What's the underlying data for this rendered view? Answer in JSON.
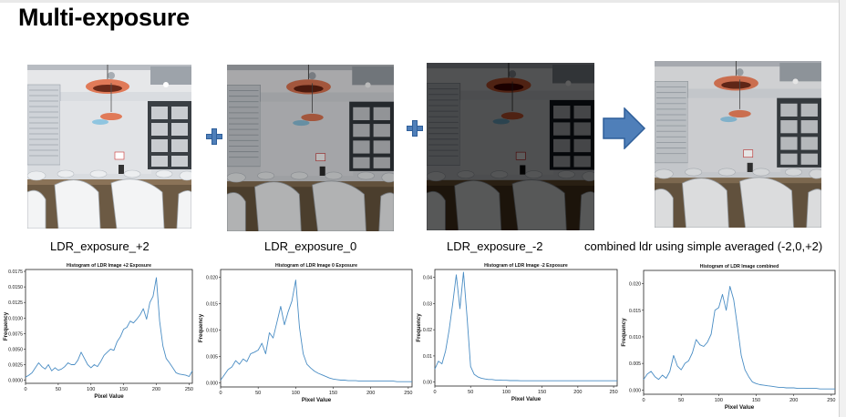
{
  "slide": {
    "title": "Multi-exposure"
  },
  "images": [
    {
      "caption": "LDR_exposure_+2"
    },
    {
      "caption": "LDR_exposure_0"
    },
    {
      "caption": "LDR_exposure_-2"
    },
    {
      "caption": "combined ldr using simple averaged (-2,0,+2)"
    }
  ],
  "colors": {
    "arrow": "#4f7fb9",
    "plus": "#4f7fb9",
    "line": "#4a8dc4"
  },
  "chart_data": [
    {
      "type": "line",
      "title": "Histogram of LDR Image +2 Exposure",
      "xlabel": "Pixel Value",
      "ylabel": "Frequency",
      "xlim": [
        0,
        255
      ],
      "ylim": [
        -0.0005,
        0.0178
      ],
      "xticks": [
        "0",
        "50",
        "100",
        "150",
        "200",
        "250"
      ],
      "yticks": [
        "0.0000",
        "0.0025",
        "0.0050",
        "0.0075",
        "0.0100",
        "0.0125",
        "0.0150",
        "0.0175"
      ],
      "ytick_values": [
        0,
        0.0025,
        0.005,
        0.0075,
        0.01,
        0.0125,
        0.015,
        0.0175
      ],
      "x": [
        0,
        5,
        10,
        15,
        20,
        25,
        30,
        35,
        40,
        45,
        50,
        55,
        60,
        65,
        70,
        75,
        80,
        85,
        90,
        95,
        100,
        105,
        110,
        115,
        120,
        125,
        130,
        135,
        140,
        145,
        150,
        155,
        160,
        165,
        170,
        175,
        180,
        185,
        190,
        195,
        200,
        205,
        210,
        215,
        220,
        225,
        230,
        235,
        240,
        245,
        250,
        255
      ],
      "values": [
        0.0005,
        0.0008,
        0.0012,
        0.002,
        0.0028,
        0.0022,
        0.0018,
        0.0025,
        0.0015,
        0.002,
        0.0016,
        0.0018,
        0.0022,
        0.0028,
        0.0025,
        0.0025,
        0.0032,
        0.0045,
        0.0035,
        0.0025,
        0.002,
        0.0025,
        0.0022,
        0.003,
        0.004,
        0.0045,
        0.005,
        0.0048,
        0.0062,
        0.007,
        0.0082,
        0.0085,
        0.0095,
        0.0092,
        0.0098,
        0.0105,
        0.0115,
        0.0098,
        0.0125,
        0.0135,
        0.0165,
        0.0095,
        0.0055,
        0.0035,
        0.0028,
        0.002,
        0.0012,
        0.001,
        0.0009,
        0.0008,
        0.0006,
        0.0015
      ]
    },
    {
      "type": "line",
      "title": "Histogram of LDR Image 0 Exposure",
      "xlabel": "Pixel Value",
      "ylabel": "Frequency",
      "xlim": [
        0,
        255
      ],
      "ylim": [
        -0.0008,
        0.0215
      ],
      "xticks": [
        "0",
        "50",
        "100",
        "150",
        "200",
        "250"
      ],
      "yticks": [
        "0.000",
        "0.005",
        "0.010",
        "0.015",
        "0.020"
      ],
      "ytick_values": [
        0,
        0.005,
        0.01,
        0.015,
        0.02
      ],
      "x": [
        0,
        5,
        10,
        15,
        20,
        25,
        30,
        35,
        40,
        45,
        50,
        55,
        60,
        65,
        70,
        75,
        80,
        85,
        90,
        95,
        100,
        105,
        110,
        115,
        120,
        125,
        130,
        135,
        140,
        145,
        150,
        155,
        160,
        165,
        170,
        175,
        180,
        185,
        190,
        195,
        200,
        205,
        210,
        215,
        220,
        225,
        230,
        235,
        240,
        245,
        250,
        255
      ],
      "values": [
        0.0005,
        0.0015,
        0.0025,
        0.003,
        0.0042,
        0.0035,
        0.0045,
        0.004,
        0.0055,
        0.0058,
        0.0062,
        0.0075,
        0.0055,
        0.0095,
        0.0085,
        0.0115,
        0.0145,
        0.011,
        0.0135,
        0.0155,
        0.0195,
        0.0105,
        0.0055,
        0.0035,
        0.0028,
        0.0022,
        0.0018,
        0.0015,
        0.0012,
        0.0009,
        0.0007,
        0.0006,
        0.0005,
        0.0005,
        0.0004,
        0.0004,
        0.0004,
        0.0003,
        0.0003,
        0.0003,
        0.0003,
        0.0003,
        0.0003,
        0.0003,
        0.0003,
        0.0003,
        0.0003,
        0.0002,
        0.0002,
        0.0002,
        0.0002,
        0.0002
      ]
    },
    {
      "type": "line",
      "title": "Histogram of LDR Image -2 Exposure",
      "xlabel": "Pixel Value",
      "ylabel": "Frequency",
      "xlim": [
        0,
        255
      ],
      "ylim": [
        -0.0015,
        0.043
      ],
      "xticks": [
        "0",
        "50",
        "100",
        "150",
        "200",
        "250"
      ],
      "yticks": [
        "0.00",
        "0.01",
        "0.02",
        "0.03",
        "0.04"
      ],
      "ytick_values": [
        0,
        0.01,
        0.02,
        0.03,
        0.04
      ],
      "x": [
        0,
        5,
        10,
        15,
        20,
        25,
        30,
        35,
        40,
        45,
        50,
        55,
        60,
        65,
        70,
        75,
        80,
        85,
        90,
        95,
        100,
        105,
        110,
        115,
        120,
        125,
        130,
        135,
        140,
        145,
        150,
        155,
        160,
        165,
        170,
        175,
        180,
        185,
        190,
        195,
        200,
        205,
        210,
        215,
        220,
        225,
        230,
        235,
        240,
        245,
        250,
        255
      ],
      "values": [
        0.005,
        0.008,
        0.007,
        0.012,
        0.02,
        0.03,
        0.041,
        0.028,
        0.042,
        0.025,
        0.006,
        0.003,
        0.002,
        0.0015,
        0.0012,
        0.001,
        0.001,
        0.0008,
        0.0008,
        0.0007,
        0.0007,
        0.0006,
        0.0006,
        0.0006,
        0.0005,
        0.0005,
        0.0005,
        0.0005,
        0.0005,
        0.0005,
        0.0005,
        0.0005,
        0.0005,
        0.0005,
        0.0005,
        0.0005,
        0.0005,
        0.0005,
        0.0005,
        0.0005,
        0.0005,
        0.0005,
        0.0005,
        0.0005,
        0.0005,
        0.0005,
        0.0005,
        0.0005,
        0.0005,
        0.0005,
        0.0005,
        0.0005
      ]
    },
    {
      "type": "line",
      "title": "Histogram of LDR Image combined",
      "xlabel": "Pixel Value",
      "ylabel": "Frequency",
      "xlim": [
        0,
        255
      ],
      "ylim": [
        -0.0008,
        0.0225
      ],
      "xticks": [
        "0",
        "50",
        "100",
        "150",
        "200",
        "250"
      ],
      "yticks": [
        "0.000",
        "0.005",
        "0.010",
        "0.015",
        "0.020"
      ],
      "ytick_values": [
        0,
        0.005,
        0.01,
        0.015,
        0.02
      ],
      "x": [
        0,
        5,
        10,
        15,
        20,
        25,
        30,
        35,
        40,
        45,
        50,
        55,
        60,
        65,
        70,
        75,
        80,
        85,
        90,
        95,
        100,
        105,
        110,
        115,
        120,
        125,
        130,
        135,
        140,
        145,
        150,
        155,
        160,
        165,
        170,
        175,
        180,
        185,
        190,
        195,
        200,
        205,
        210,
        215,
        220,
        225,
        230,
        235,
        240,
        245,
        250,
        255
      ],
      "values": [
        0.002,
        0.003,
        0.0035,
        0.0025,
        0.002,
        0.0028,
        0.0022,
        0.0035,
        0.0065,
        0.0045,
        0.0038,
        0.005,
        0.0055,
        0.007,
        0.0095,
        0.0085,
        0.0082,
        0.009,
        0.0105,
        0.015,
        0.0155,
        0.018,
        0.015,
        0.0195,
        0.017,
        0.012,
        0.0065,
        0.0038,
        0.0025,
        0.0015,
        0.0012,
        0.001,
        0.0009,
        0.0008,
        0.0007,
        0.0006,
        0.0005,
        0.0005,
        0.0004,
        0.0004,
        0.0004,
        0.0003,
        0.0003,
        0.0003,
        0.0003,
        0.0003,
        0.0003,
        0.0002,
        0.0002,
        0.0002,
        0.0002,
        0.0002
      ]
    }
  ]
}
